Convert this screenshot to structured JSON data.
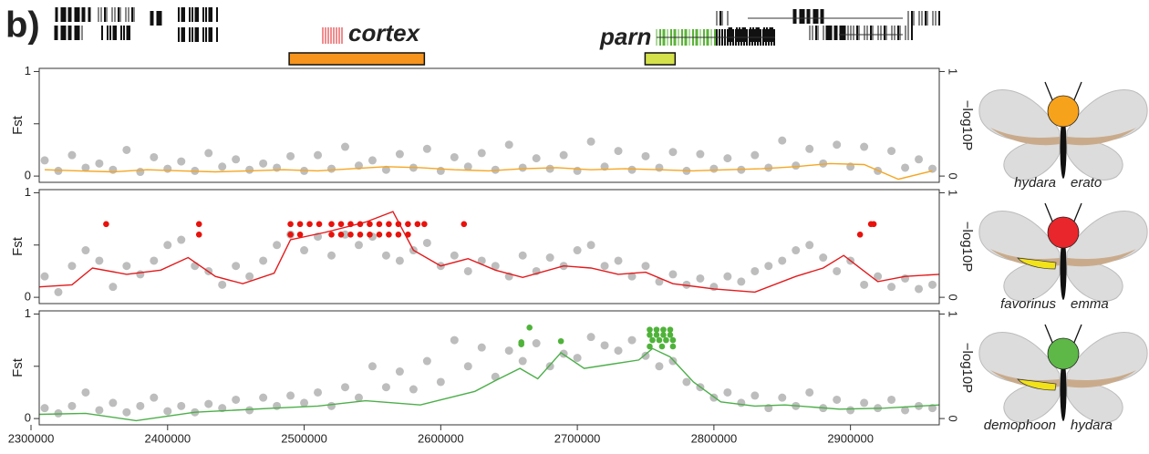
{
  "label": "b)",
  "genes": [
    {
      "name": "cortex",
      "region": [
        2489000,
        2588000
      ],
      "color": "#f7941d"
    },
    {
      "name": "parn",
      "region": [
        2749600,
        2771600
      ],
      "color": "#d4e14a"
    }
  ],
  "butterflies": [
    {
      "left": "hydara",
      "right": "erato",
      "spot": "#f7a21b",
      "yellow_band": false
    },
    {
      "left": "favorinus",
      "right": "emma",
      "spot": "#e8262b",
      "yellow_band": true
    },
    {
      "left": "demophoon",
      "right": "hydara",
      "spot": "#5db847",
      "yellow_band": true
    }
  ],
  "chart_data": [
    {
      "type": "scatter",
      "ylabel": "Fst",
      "y2label": "−log10P",
      "xlim": [
        2306000,
        2965000
      ],
      "ylim": [
        -0.06,
        1.03
      ],
      "yticks": [
        0,
        1
      ],
      "minor_yticks": [
        0.5
      ],
      "y2lim": [
        -0.06,
        1.03
      ],
      "y2ticks": [
        0,
        1
      ],
      "series": [
        {
          "color": "#bdbdbd",
          "x": [
            2310000,
            2320000,
            2330000,
            2340000,
            2350000,
            2360000,
            2370000,
            2380000,
            2390000,
            2400000,
            2410000,
            2420000,
            2430000,
            2440000,
            2450000,
            2460000,
            2470000,
            2480000,
            2490000,
            2500000,
            2510000,
            2520000,
            2530000,
            2540000,
            2550000,
            2560000,
            2570000,
            2580000,
            2590000,
            2600000,
            2610000,
            2620000,
            2630000,
            2640000,
            2650000,
            2660000,
            2670000,
            2680000,
            2690000,
            2700000,
            2710000,
            2720000,
            2730000,
            2740000,
            2750000,
            2760000,
            2770000,
            2780000,
            2790000,
            2800000,
            2810000,
            2820000,
            2830000,
            2840000,
            2850000,
            2860000,
            2870000,
            2880000,
            2890000,
            2900000,
            2910000,
            2920000,
            2930000,
            2940000,
            2950000,
            2960000
          ],
          "values": [
            0.15,
            0.05,
            0.2,
            0.08,
            0.12,
            0.06,
            0.25,
            0.04,
            0.18,
            0.07,
            0.14,
            0.05,
            0.22,
            0.09,
            0.16,
            0.06,
            0.12,
            0.08,
            0.19,
            0.05,
            0.2,
            0.07,
            0.28,
            0.1,
            0.15,
            0.06,
            0.21,
            0.08,
            0.26,
            0.05,
            0.18,
            0.09,
            0.22,
            0.06,
            0.3,
            0.08,
            0.17,
            0.07,
            0.2,
            0.05,
            0.33,
            0.09,
            0.24,
            0.06,
            0.19,
            0.08,
            0.23,
            0.05,
            0.21,
            0.07,
            0.17,
            0.06,
            0.2,
            0.08,
            0.34,
            0.1,
            0.26,
            0.12,
            0.3,
            0.09,
            0.28,
            0.05,
            0.24,
            0.08,
            0.16,
            0.07
          ]
        },
        {
          "color": "#f5a623",
          "axis": "y2",
          "line": true,
          "x": [
            2310000,
            2335000,
            2360000,
            2385000,
            2410000,
            2435000,
            2460000,
            2485000,
            2510000,
            2535000,
            2560000,
            2585000,
            2610000,
            2635000,
            2660000,
            2685000,
            2710000,
            2735000,
            2760000,
            2785000,
            2810000,
            2835000,
            2860000,
            2885000,
            2910000,
            2935000,
            2960000
          ],
          "values": [
            0.06,
            0.05,
            0.04,
            0.06,
            0.05,
            0.04,
            0.05,
            0.06,
            0.05,
            0.07,
            0.09,
            0.08,
            0.06,
            0.05,
            0.07,
            0.08,
            0.06,
            0.07,
            0.06,
            0.05,
            0.06,
            0.07,
            0.09,
            0.12,
            0.11,
            -0.03,
            0.05
          ]
        }
      ]
    },
    {
      "type": "scatter",
      "ylabel": "Fst",
      "y2label": "−log10P",
      "xlim": [
        2306000,
        2965000
      ],
      "ylim": [
        -0.06,
        1.03
      ],
      "yticks": [
        0,
        1
      ],
      "minor_yticks": [
        0.5
      ],
      "y2lim": [
        -0.06,
        1.03
      ],
      "y2ticks": [
        0,
        1
      ],
      "series": [
        {
          "color": "#bdbdbd",
          "x": [
            2310000,
            2320000,
            2330000,
            2340000,
            2350000,
            2360000,
            2370000,
            2380000,
            2390000,
            2400000,
            2410000,
            2420000,
            2430000,
            2440000,
            2450000,
            2460000,
            2470000,
            2480000,
            2490000,
            2500000,
            2510000,
            2520000,
            2530000,
            2540000,
            2550000,
            2560000,
            2570000,
            2580000,
            2590000,
            2600000,
            2610000,
            2620000,
            2630000,
            2640000,
            2650000,
            2660000,
            2670000,
            2680000,
            2690000,
            2700000,
            2710000,
            2720000,
            2730000,
            2740000,
            2750000,
            2760000,
            2770000,
            2780000,
            2790000,
            2800000,
            2810000,
            2820000,
            2830000,
            2840000,
            2850000,
            2860000,
            2870000,
            2880000,
            2890000,
            2900000,
            2910000,
            2920000,
            2930000,
            2940000,
            2950000,
            2960000
          ],
          "values": [
            0.2,
            0.05,
            0.3,
            0.45,
            0.35,
            0.1,
            0.3,
            0.22,
            0.35,
            0.5,
            0.55,
            0.3,
            0.25,
            0.12,
            0.3,
            0.2,
            0.35,
            0.5,
            0.6,
            0.45,
            0.58,
            0.4,
            0.6,
            0.5,
            0.58,
            0.4,
            0.35,
            0.45,
            0.52,
            0.3,
            0.4,
            0.25,
            0.35,
            0.3,
            0.2,
            0.4,
            0.25,
            0.38,
            0.3,
            0.45,
            0.5,
            0.3,
            0.35,
            0.2,
            0.3,
            0.15,
            0.22,
            0.12,
            0.18,
            0.1,
            0.2,
            0.15,
            0.25,
            0.3,
            0.35,
            0.45,
            0.5,
            0.38,
            0.25,
            0.35,
            0.12,
            0.2,
            0.1,
            0.18,
            0.08,
            0.12
          ]
        },
        {
          "color": "#e31a1c",
          "axis": "y2",
          "line": true,
          "x": [
            2306000,
            2330000,
            2345000,
            2370000,
            2395000,
            2415000,
            2435000,
            2455000,
            2478000,
            2490000,
            2515000,
            2545000,
            2565000,
            2580000,
            2600000,
            2620000,
            2640000,
            2660000,
            2690000,
            2710000,
            2730000,
            2750000,
            2770000,
            2800000,
            2830000,
            2860000,
            2880000,
            2895000,
            2905000,
            2920000,
            2940000,
            2965000
          ],
          "values": [
            0.1,
            0.12,
            0.28,
            0.22,
            0.26,
            0.38,
            0.2,
            0.13,
            0.23,
            0.55,
            0.62,
            0.72,
            0.82,
            0.45,
            0.3,
            0.37,
            0.26,
            0.19,
            0.3,
            0.28,
            0.22,
            0.24,
            0.13,
            0.08,
            0.05,
            0.2,
            0.28,
            0.4,
            0.3,
            0.15,
            0.2,
            0.22
          ]
        },
        {
          "color": "#e8120c",
          "x": [
            2355000,
            2423000,
            2423000,
            2490000,
            2497000,
            2504000,
            2511000,
            2520000,
            2527000,
            2534000,
            2541000,
            2548000,
            2555000,
            2562000,
            2569000,
            2576000,
            2583000,
            2588000,
            2490000,
            2497000,
            2520000,
            2527000,
            2534000,
            2541000,
            2548000,
            2555000,
            2562000,
            2569000,
            2576000,
            2617000,
            2907000,
            2915000,
            2917000
          ],
          "values": [
            0.7,
            0.7,
            0.6,
            0.7,
            0.7,
            0.7,
            0.7,
            0.7,
            0.7,
            0.7,
            0.7,
            0.7,
            0.7,
            0.7,
            0.7,
            0.7,
            0.7,
            0.7,
            0.6,
            0.6,
            0.6,
            0.6,
            0.6,
            0.6,
            0.6,
            0.6,
            0.6,
            0.6,
            0.6,
            0.7,
            0.6,
            0.7,
            0.7
          ]
        }
      ]
    },
    {
      "type": "scatter",
      "ylabel": "Fst",
      "y2label": "−log10P",
      "xlim": [
        2306000,
        2965000
      ],
      "ylim": [
        -0.06,
        1.03
      ],
      "yticks": [
        0,
        1
      ],
      "minor_yticks": [
        0.5
      ],
      "y2lim": [
        -0.06,
        1.03
      ],
      "y2ticks": [
        0,
        1
      ],
      "xticks": [
        2300000,
        2400000,
        2500000,
        2600000,
        2700000,
        2800000,
        2900000
      ],
      "series": [
        {
          "color": "#bdbdbd",
          "x": [
            2310000,
            2320000,
            2330000,
            2340000,
            2350000,
            2360000,
            2370000,
            2380000,
            2390000,
            2400000,
            2410000,
            2420000,
            2430000,
            2440000,
            2450000,
            2460000,
            2470000,
            2480000,
            2490000,
            2500000,
            2510000,
            2520000,
            2530000,
            2540000,
            2550000,
            2560000,
            2570000,
            2580000,
            2590000,
            2600000,
            2610000,
            2620000,
            2630000,
            2640000,
            2650000,
            2660000,
            2670000,
            2680000,
            2690000,
            2700000,
            2710000,
            2720000,
            2730000,
            2740000,
            2750000,
            2760000,
            2770000,
            2780000,
            2790000,
            2800000,
            2810000,
            2820000,
            2830000,
            2840000,
            2850000,
            2860000,
            2870000,
            2880000,
            2890000,
            2900000,
            2910000,
            2920000,
            2930000,
            2940000,
            2950000,
            2960000
          ],
          "values": [
            0.1,
            0.05,
            0.12,
            0.25,
            0.08,
            0.15,
            0.06,
            0.12,
            0.2,
            0.07,
            0.12,
            0.06,
            0.14,
            0.1,
            0.18,
            0.08,
            0.2,
            0.12,
            0.22,
            0.15,
            0.25,
            0.12,
            0.3,
            0.2,
            0.5,
            0.3,
            0.45,
            0.28,
            0.55,
            0.35,
            0.75,
            0.5,
            0.68,
            0.4,
            0.65,
            0.55,
            0.72,
            0.5,
            0.62,
            0.58,
            0.78,
            0.7,
            0.65,
            0.75,
            0.6,
            0.5,
            0.55,
            0.35,
            0.3,
            0.2,
            0.25,
            0.15,
            0.22,
            0.1,
            0.2,
            0.12,
            0.25,
            0.1,
            0.18,
            0.08,
            0.15,
            0.1,
            0.18,
            0.08,
            0.12,
            0.1
          ]
        },
        {
          "color": "#4daf4a",
          "axis": "y2",
          "line": true,
          "x": [
            2306000,
            2340000,
            2377000,
            2420000,
            2478000,
            2510000,
            2545000,
            2585000,
            2625000,
            2641000,
            2658000,
            2671000,
            2688000,
            2705000,
            2725000,
            2745000,
            2755000,
            2768000,
            2785000,
            2805000,
            2830000,
            2852000,
            2892000,
            2925000,
            2965000
          ],
          "values": [
            0.04,
            0.05,
            -0.02,
            0.06,
            0.1,
            0.12,
            0.17,
            0.13,
            0.26,
            0.37,
            0.48,
            0.38,
            0.63,
            0.48,
            0.52,
            0.56,
            0.67,
            0.59,
            0.35,
            0.16,
            0.12,
            0.13,
            0.09,
            0.1,
            0.13
          ]
        },
        {
          "color": "#4fb33a",
          "x": [
            2665000,
            2659000,
            2659000,
            2688000,
            2753000,
            2758000,
            2763000,
            2768000,
            2753000,
            2758000,
            2763000,
            2768000,
            2755000,
            2760000,
            2765000,
            2770000,
            2753000,
            2762000,
            2770000
          ],
          "values": [
            0.87,
            0.73,
            0.71,
            0.74,
            0.85,
            0.85,
            0.85,
            0.85,
            0.8,
            0.8,
            0.8,
            0.8,
            0.75,
            0.75,
            0.75,
            0.75,
            0.69,
            0.69,
            0.69
          ]
        }
      ]
    }
  ]
}
